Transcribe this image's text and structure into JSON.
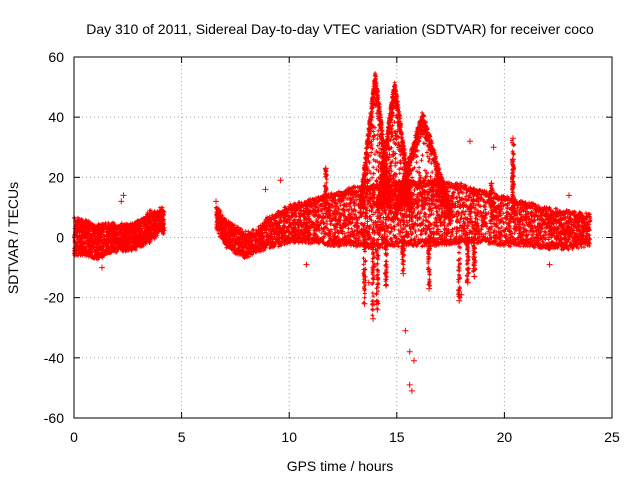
{
  "chart_data": {
    "type": "scatter",
    "title": "Day 310 of 2011, Sidereal Day-to-day VTEC variation (SDTVAR) for receiver coco",
    "xlabel": "GPS time / hours",
    "ylabel": "SDTVAR / TECUs",
    "xlim": [
      0,
      25
    ],
    "ylim": [
      -60,
      60
    ],
    "xticks": [
      0,
      5,
      10,
      15,
      20,
      25
    ],
    "yticks": [
      -60,
      -40,
      -20,
      0,
      20,
      40,
      60
    ],
    "grid": true,
    "marker": "+",
    "color": "#ff0000",
    "series": [
      {
        "name": "SDTVAR",
        "band_lower": [
          [
            0,
            -5
          ],
          [
            0.5,
            -5
          ],
          [
            1,
            -7
          ],
          [
            1.5,
            -5
          ],
          [
            2,
            -4
          ],
          [
            2.5,
            -4
          ],
          [
            3,
            -3
          ],
          [
            3.5,
            -1
          ],
          [
            4,
            2
          ],
          [
            4.2,
            2
          ]
        ],
        "band_upper": [
          [
            0,
            6
          ],
          [
            0.5,
            5
          ],
          [
            1,
            4
          ],
          [
            1.5,
            4
          ],
          [
            2,
            4
          ],
          [
            2.5,
            4
          ],
          [
            3,
            5
          ],
          [
            3.5,
            8
          ],
          [
            4,
            9
          ],
          [
            4.2,
            9
          ]
        ],
        "band2_lower": [
          [
            6.6,
            4
          ],
          [
            7,
            -2
          ],
          [
            7.5,
            -5
          ],
          [
            8,
            -6
          ],
          [
            8.5,
            -4
          ],
          [
            9,
            -3
          ],
          [
            9.5,
            -2
          ],
          [
            10,
            -1
          ],
          [
            11,
            -1
          ],
          [
            12,
            -2
          ],
          [
            13,
            -2
          ],
          [
            14,
            -3
          ],
          [
            15,
            -2
          ],
          [
            16,
            -2
          ],
          [
            17,
            -2
          ],
          [
            18,
            -1
          ],
          [
            19,
            -1
          ],
          [
            20,
            -2
          ],
          [
            21,
            -2
          ],
          [
            22,
            -3
          ],
          [
            23,
            -3
          ],
          [
            24,
            -2
          ]
        ],
        "band2_upper": [
          [
            6.6,
            10
          ],
          [
            7,
            6
          ],
          [
            7.5,
            3
          ],
          [
            8,
            1
          ],
          [
            8.5,
            2
          ],
          [
            9,
            6
          ],
          [
            9.5,
            8
          ],
          [
            10,
            10
          ],
          [
            11,
            12
          ],
          [
            12,
            14
          ],
          [
            13,
            16
          ],
          [
            14,
            17
          ],
          [
            15,
            18
          ],
          [
            16,
            18
          ],
          [
            17,
            18
          ],
          [
            18,
            17
          ],
          [
            19,
            15
          ],
          [
            20,
            13
          ],
          [
            21,
            11
          ],
          [
            22,
            9
          ],
          [
            23,
            8
          ],
          [
            24,
            7
          ]
        ],
        "peaks": [
          {
            "center": 14.0,
            "width": 0.7,
            "top": 55
          },
          {
            "center": 14.9,
            "width": 0.8,
            "top": 52
          },
          {
            "center": 16.2,
            "width": 1.3,
            "top": 42
          }
        ],
        "spikes": [
          {
            "x": 13.5,
            "y": -22
          },
          {
            "x": 13.9,
            "y": -27
          },
          {
            "x": 14.1,
            "y": -24
          },
          {
            "x": 14.5,
            "y": -16
          },
          {
            "x": 15.3,
            "y": -12
          },
          {
            "x": 16.5,
            "y": -17
          },
          {
            "x": 17.9,
            "y": -21
          },
          {
            "x": 18.3,
            "y": -15
          },
          {
            "x": 18.6,
            "y": -13
          },
          {
            "x": 20.4,
            "y": 26
          },
          {
            "x": 20.4,
            "y": 33
          },
          {
            "x": 11.7,
            "y": 23
          },
          {
            "x": 19.4,
            "y": 18
          }
        ],
        "outliers": [
          {
            "x": 2.3,
            "y": 14
          },
          {
            "x": 2.2,
            "y": 12
          },
          {
            "x": 8.9,
            "y": 16
          },
          {
            "x": 9.6,
            "y": 19
          },
          {
            "x": 18.4,
            "y": 32
          },
          {
            "x": 19.5,
            "y": 30
          },
          {
            "x": 15.4,
            "y": -31
          },
          {
            "x": 15.6,
            "y": -38
          },
          {
            "x": 15.8,
            "y": -41
          },
          {
            "x": 15.6,
            "y": -49
          },
          {
            "x": 15.7,
            "y": -51
          },
          {
            "x": 13.7,
            "y": -15
          },
          {
            "x": 10.8,
            "y": -9
          },
          {
            "x": 1.3,
            "y": -10
          },
          {
            "x": 22.1,
            "y": -9
          },
          {
            "x": 23.0,
            "y": 14
          },
          {
            "x": 18.0,
            "y": -19
          },
          {
            "x": 6.6,
            "y": 12
          }
        ]
      }
    ]
  }
}
